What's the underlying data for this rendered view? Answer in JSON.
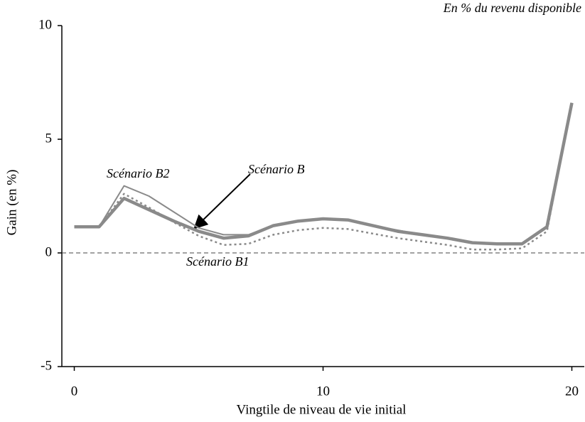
{
  "chart_data": {
    "type": "line",
    "subtitle": "En % du revenu disponible",
    "x_label": "Vingtile de niveau de vie initial",
    "y_label": "Gain (en %)",
    "x": [
      0,
      1,
      2,
      3,
      4,
      5,
      6,
      7,
      8,
      9,
      10,
      11,
      12,
      13,
      14,
      15,
      16,
      17,
      18,
      19,
      20
    ],
    "series": [
      {
        "name": "Scénario B2",
        "color": "#8a8a8a",
        "style": "thin",
        "values": [
          1.15,
          1.15,
          2.95,
          2.5,
          1.8,
          1.1,
          0.8,
          0.8,
          1.2,
          1.4,
          1.5,
          1.45,
          1.2,
          1.0,
          0.8,
          0.65,
          0.45,
          0.4,
          0.4,
          1.15,
          6.6
        ]
      },
      {
        "name": "Scénario B1",
        "color": "#8a8a8a",
        "style": "dotted",
        "values": [
          1.15,
          1.15,
          2.6,
          2.0,
          1.35,
          0.75,
          0.35,
          0.4,
          0.8,
          1.0,
          1.1,
          1.05,
          0.85,
          0.65,
          0.5,
          0.35,
          0.15,
          0.15,
          0.2,
          0.95,
          6.6
        ]
      },
      {
        "name": "Scénario B",
        "color": "#8a8a8a",
        "style": "thick",
        "values": [
          1.15,
          1.15,
          2.4,
          1.9,
          1.4,
          0.95,
          0.65,
          0.75,
          1.2,
          1.4,
          1.5,
          1.45,
          1.2,
          0.95,
          0.8,
          0.65,
          0.45,
          0.4,
          0.4,
          1.15,
          6.6
        ]
      }
    ],
    "xlim": [
      -0.5,
      20.5
    ],
    "xticks": [
      0,
      10,
      20
    ],
    "ylim": [
      -5,
      10
    ],
    "yticks": [
      -5,
      0,
      5,
      10
    ],
    "reference_line": 0
  }
}
